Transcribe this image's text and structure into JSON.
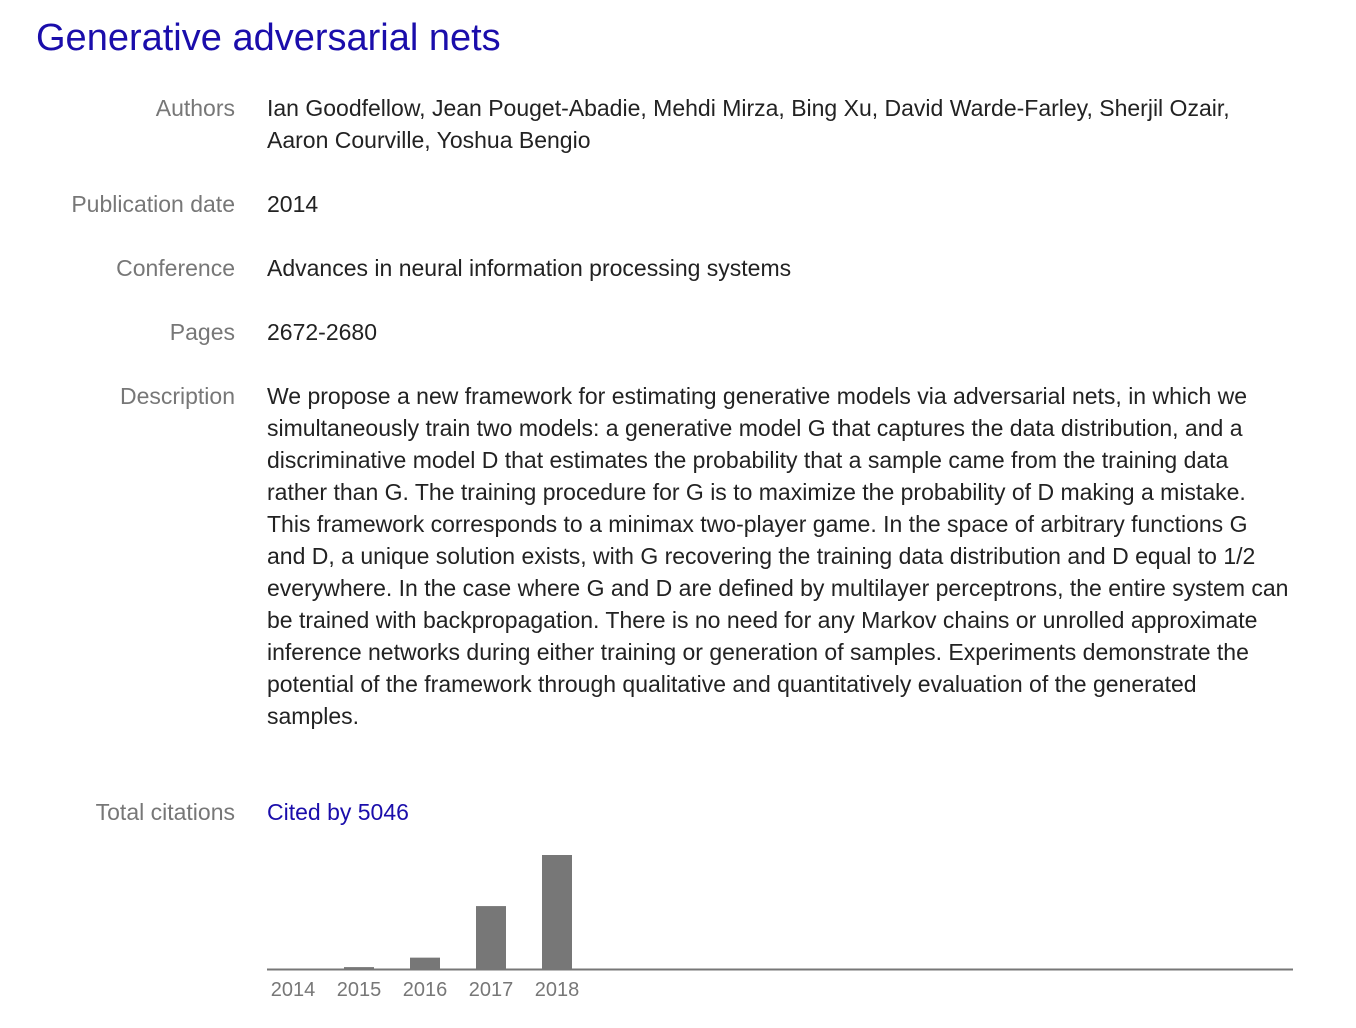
{
  "title": "Generative adversarial nets",
  "fields": {
    "authors_label": "Authors",
    "authors": "Ian Goodfellow, Jean Pouget-Abadie, Mehdi Mirza, Bing Xu, David Warde-Farley, Sherjil Ozair, Aaron Courville, Yoshua Bengio",
    "date_label": "Publication date",
    "date": "2014",
    "conference_label": "Conference",
    "conference": "Advances in neural information processing systems",
    "pages_label": "Pages",
    "pages": "2672-2680",
    "description_label": "Description",
    "description": "We propose a new framework for estimating generative models via adversarial nets, in which we simultaneously train two models: a generative model G that captures the data distribution, and a discriminative model D that estimates the probability that a sample came from the training data rather than G. The training procedure for G is to maximize the probability of D making a mistake. This framework corresponds to a minimax two-player game. In the space of arbitrary functions G and D, a unique solution exists, with G recovering the training data distribution and D equal to 1/2 everywhere. In the case where G and D are defined by multilayer perceptrons, the entire system can be trained with backpropagation. There is no need for any Markov chains or unrolled approximate inference networks during either training or generation of samples. Experiments demonstrate the potential of the framework through qualitative and quantitatively evaluation of the generated samples.",
    "citations_label": "Total citations",
    "citations_link": "Cited by 5046"
  },
  "colors": {
    "link": "#1a0dab",
    "bar": "#777777",
    "label": "#777777",
    "axis": "#777777"
  },
  "chart_data": {
    "type": "bar",
    "categories": [
      "2014",
      "2015",
      "2016",
      "2017",
      "2018"
    ],
    "values": [
      0,
      40,
      240,
      1330,
      2410
    ],
    "ylim": [
      0,
      2410
    ],
    "title": "",
    "xlabel": "",
    "ylabel": "",
    "grid": false
  }
}
